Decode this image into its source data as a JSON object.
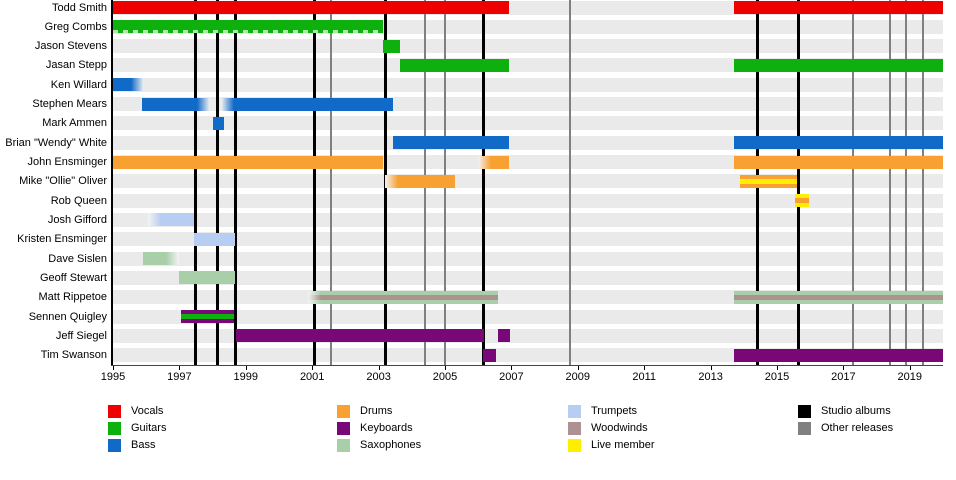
{
  "chart_data": {
    "type": "timeline",
    "x_axis": {
      "start": 1995,
      "end": 2020,
      "tick_years": [
        1995,
        1997,
        1999,
        2001,
        2003,
        2005,
        2007,
        2009,
        2011,
        2013,
        2015,
        2017,
        2019
      ]
    },
    "colors": {
      "vocals": "#ee0000",
      "guitars": "#0db00d",
      "bass": "#1169c8",
      "drums": "#f8a032",
      "keyboards": "#780878",
      "saxophones": "#a8cfa8",
      "trumpets": "#b7cdf2",
      "woodwinds": "#ae9191",
      "live": "#ffee00",
      "studio_album": "#000000",
      "other_release": "#808080"
    },
    "studio_album_years": [
      1997.47,
      1998.15,
      1998.7,
      2001.08,
      2003.22,
      2006.17,
      2014.42,
      2015.66
    ],
    "other_release_years": [
      2001.57,
      2004.4,
      2005.0,
      2008.76,
      2017.29,
      2018.4,
      2018.88,
      2019.4
    ],
    "members": [
      {
        "name": "Todd Smith",
        "bars": [
          {
            "start": 1995.0,
            "end": 2006.93,
            "color": "#ee0000"
          },
          {
            "start": 2013.7,
            "end": 2020.0,
            "color": "#ee0000"
          }
        ]
      },
      {
        "name": "Greg Combs",
        "bars": [
          {
            "start": 1995.0,
            "end": 2003.13,
            "color": "#0db00d",
            "dashed_underline": true
          }
        ]
      },
      {
        "name": "Jason Stevens",
        "bars": [
          {
            "start": 2003.13,
            "end": 2003.64,
            "color": "#0db00d"
          }
        ]
      },
      {
        "name": "Jasan Stepp",
        "bars": [
          {
            "start": 2003.64,
            "end": 2006.93,
            "color": "#0db00d"
          },
          {
            "start": 2013.7,
            "end": 2020.0,
            "color": "#0db00d"
          }
        ]
      },
      {
        "name": "Ken Willard",
        "bars": [
          {
            "start": 1995.0,
            "end": 1995.93,
            "color": "#1169c8",
            "fade_right": true
          }
        ]
      },
      {
        "name": "Stephen Mears",
        "bars": [
          {
            "start": 1995.88,
            "end": 1997.93,
            "color": "#1169c8",
            "fade_right": true
          },
          {
            "start": 1998.26,
            "end": 2003.43,
            "color": "#1169c8",
            "fade_left": true
          }
        ]
      },
      {
        "name": "Mark Ammen",
        "bars": [
          {
            "start": 1998.0,
            "end": 1998.35,
            "color": "#1169c8"
          }
        ]
      },
      {
        "name": "Brian \"Wendy\" White",
        "bars": [
          {
            "start": 2003.43,
            "end": 2006.93,
            "color": "#1169c8"
          },
          {
            "start": 2013.7,
            "end": 2020.0,
            "color": "#1169c8"
          }
        ]
      },
      {
        "name": "John Ensminger",
        "bars": [
          {
            "start": 1995.0,
            "end": 2003.13,
            "color": "#f8a032"
          },
          {
            "start": 2006.0,
            "end": 2006.93,
            "color": "#f8a032",
            "fade_left": true
          },
          {
            "start": 2013.7,
            "end": 2020.0,
            "color": "#f8a032"
          }
        ]
      },
      {
        "name": "Mike \"Ollie\" Oliver",
        "bars": [
          {
            "start": 2003.2,
            "end": 2005.3,
            "color": "#f8a032",
            "fade_left": true
          },
          {
            "start": 2013.9,
            "end": 2015.6,
            "color": "#f8a032",
            "stripes": [
              "#f8a032",
              "#ffee00",
              "#f8a032"
            ]
          }
        ]
      },
      {
        "name": "Rob Queen",
        "bars": [
          {
            "start": 2015.55,
            "end": 2015.95,
            "color": "#ffee00",
            "stripes": [
              "#ffee00",
              "#f8a032",
              "#ffee00"
            ]
          }
        ]
      },
      {
        "name": "Josh Gifford",
        "bars": [
          {
            "start": 1996.05,
            "end": 1997.45,
            "color": "#b7cdf2",
            "fade_left": true
          }
        ]
      },
      {
        "name": "Kristen Ensminger",
        "bars": [
          {
            "start": 1997.45,
            "end": 1998.68,
            "color": "#b7cdf2"
          }
        ]
      },
      {
        "name": "Dave Sislen",
        "bars": [
          {
            "start": 1995.9,
            "end": 1997.0,
            "color": "#a8cfa8",
            "fade_right": true
          }
        ]
      },
      {
        "name": "Geoff Stewart",
        "bars": [
          {
            "start": 1997.0,
            "end": 1998.68,
            "color": "#a8cfa8"
          }
        ]
      },
      {
        "name": "Matt Rippetoe",
        "bars": [
          {
            "start": 2000.87,
            "end": 2006.6,
            "color": "#a8cfa8",
            "fade_left": true,
            "stripes": [
              "#a8cfa8",
              "#ae9191",
              "#a8cfa8"
            ]
          },
          {
            "start": 2013.7,
            "end": 2020.0,
            "color": "#a8cfa8",
            "stripes": [
              "#a8cfa8",
              "#ae9191",
              "#a8cfa8"
            ]
          }
        ]
      },
      {
        "name": "Sennen Quigley",
        "bars": [
          {
            "start": 1997.05,
            "end": 1998.65,
            "color": "#780878",
            "stripes": [
              "#780878",
              "#0db00d",
              "#780878"
            ]
          }
        ]
      },
      {
        "name": "Jeff Siegel",
        "bars": [
          {
            "start": 1998.7,
            "end": 2006.17,
            "color": "#780878"
          },
          {
            "start": 2006.6,
            "end": 2006.95,
            "color": "#780878"
          }
        ]
      },
      {
        "name": "Tim Swanson",
        "bars": [
          {
            "start": 2006.13,
            "end": 2006.55,
            "color": "#780878"
          },
          {
            "start": 2013.7,
            "end": 2020.0,
            "color": "#780878"
          }
        ]
      }
    ],
    "legend": {
      "columns": [
        {
          "items": [
            {
              "label": "Vocals",
              "color": "#ee0000"
            },
            {
              "label": "Guitars",
              "color": "#0db00d"
            },
            {
              "label": "Bass",
              "color": "#1169c8"
            }
          ]
        },
        {
          "items": [
            {
              "label": "Drums",
              "color": "#f8a032"
            },
            {
              "label": "Keyboards",
              "color": "#780878"
            },
            {
              "label": "Saxophones",
              "color": "#a8cfa8"
            }
          ]
        },
        {
          "items": [
            {
              "label": "Trumpets",
              "color": "#b7cdf2"
            },
            {
              "label": "Woodwinds",
              "color": "#ae9191"
            },
            {
              "label": "Live member",
              "color": "#ffee00"
            }
          ]
        },
        {
          "items": [
            {
              "label": "Studio albums",
              "color": "#000000"
            },
            {
              "label": "Other releases",
              "color": "#808080"
            }
          ]
        }
      ]
    }
  }
}
